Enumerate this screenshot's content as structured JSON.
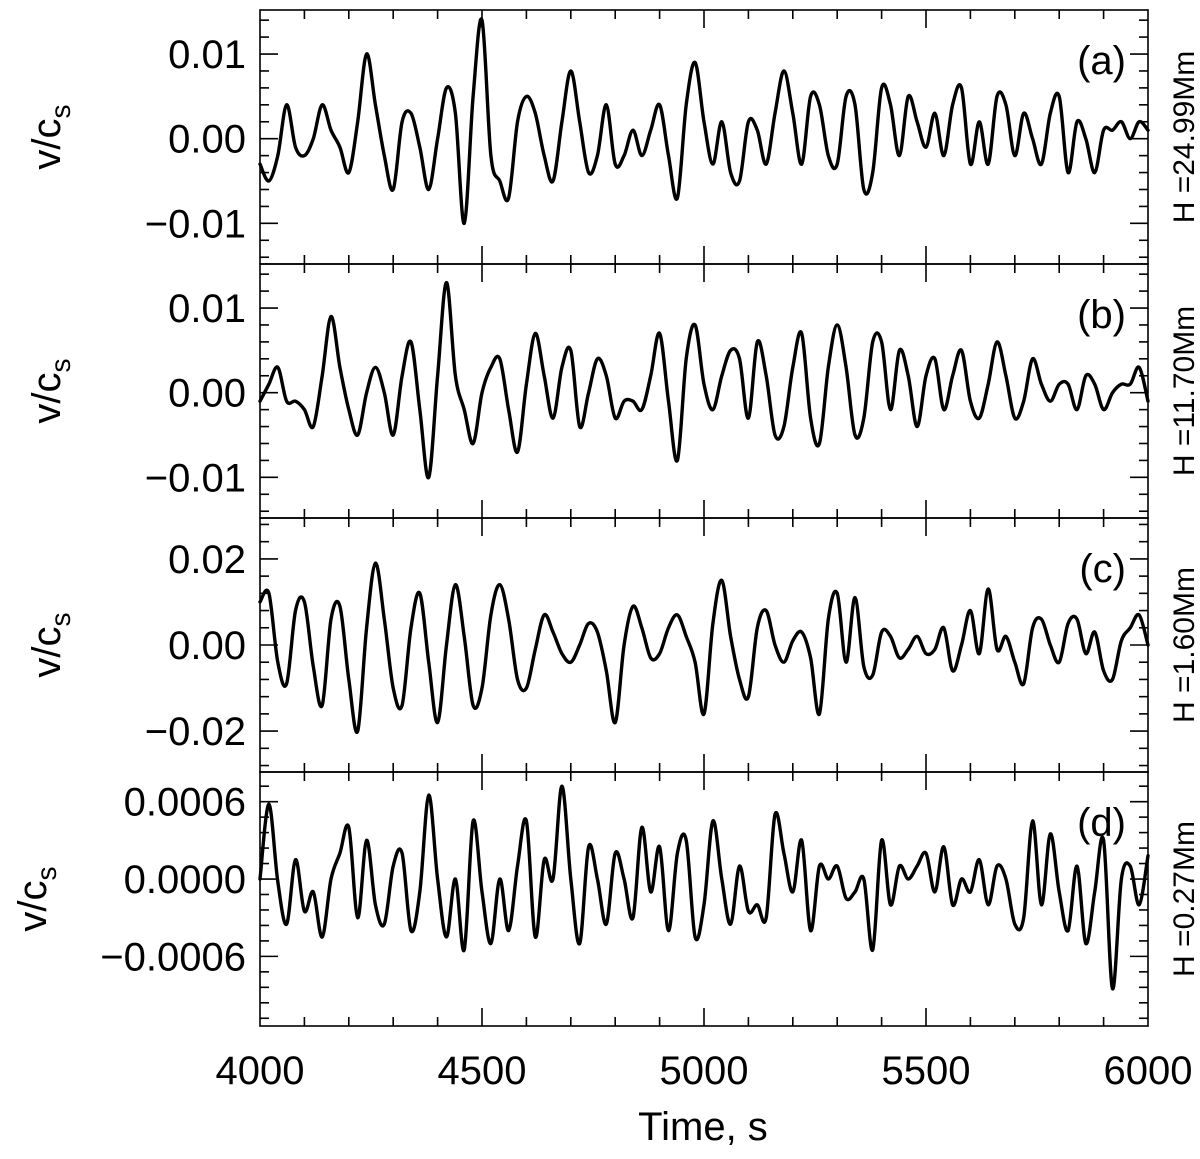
{
  "chart_data": {
    "type": "line",
    "layout": "stacked-panels",
    "xlabel": "Time, s",
    "xlim": [
      4000,
      6000
    ],
    "xticks": [
      4000,
      4500,
      5000,
      5500,
      6000
    ],
    "xtick_labels": [
      "4000",
      "4500",
      "5000",
      "5500",
      "6000"
    ],
    "grid": false,
    "colors": {
      "line": "#000000",
      "axes": "#000000",
      "background": "#ffffff"
    },
    "panels": [
      {
        "tag": "(a)",
        "ylabel": "v/c",
        "ylabel_sub": "s",
        "side_label": "H =24.99Mm",
        "ylim": [
          -0.0148,
          0.0152
        ],
        "yticks": [
          -0.01,
          0.0,
          0.01
        ],
        "ytick_labels": [
          "−0.01",
          "0.00",
          "0.01"
        ],
        "series": {
          "x": [
            4000,
            4020,
            4040,
            4060,
            4080,
            4100,
            4120,
            4140,
            4160,
            4180,
            4200,
            4220,
            4240,
            4260,
            4280,
            4300,
            4320,
            4340,
            4360,
            4380,
            4400,
            4420,
            4440,
            4460,
            4480,
            4500,
            4520,
            4540,
            4560,
            4580,
            4600,
            4620,
            4640,
            4660,
            4680,
            4700,
            4720,
            4740,
            4760,
            4780,
            4800,
            4820,
            4840,
            4860,
            4880,
            4900,
            4920,
            4940,
            4960,
            4980,
            5000,
            5020,
            5040,
            5060,
            5080,
            5100,
            5120,
            5140,
            5160,
            5180,
            5200,
            5220,
            5240,
            5260,
            5280,
            5300,
            5320,
            5340,
            5360,
            5380,
            5400,
            5420,
            5440,
            5460,
            5480,
            5500,
            5520,
            5540,
            5560,
            5580,
            5600,
            5620,
            5640,
            5660,
            5680,
            5700,
            5720,
            5740,
            5760,
            5780,
            5800,
            5820,
            5840,
            5860,
            5880,
            5900,
            5920,
            5940,
            5960,
            5980,
            6000
          ],
          "y": [
            -0.003,
            -0.005,
            -0.002,
            0.004,
            -0.001,
            -0.002,
            0.0,
            0.004,
            0.001,
            -0.001,
            -0.004,
            0.002,
            0.01,
            0.004,
            -0.002,
            -0.006,
            0.002,
            0.003,
            -0.001,
            -0.006,
            0.0,
            0.006,
            0.003,
            -0.01,
            0.005,
            0.014,
            -0.002,
            -0.005,
            -0.007,
            0.002,
            0.005,
            0.003,
            -0.002,
            -0.005,
            0.002,
            0.008,
            0.002,
            -0.004,
            -0.002,
            0.004,
            -0.003,
            -0.002,
            0.001,
            -0.002,
            0.001,
            0.004,
            -0.002,
            -0.007,
            0.004,
            0.009,
            0.002,
            -0.003,
            0.002,
            -0.004,
            -0.005,
            0.002,
            0.001,
            -0.003,
            0.003,
            0.008,
            0.003,
            -0.003,
            0.005,
            0.004,
            -0.002,
            -0.003,
            0.005,
            0.004,
            -0.006,
            -0.004,
            0.006,
            0.004,
            -0.002,
            0.005,
            0.002,
            -0.001,
            0.003,
            -0.002,
            0.004,
            0.006,
            -0.003,
            0.002,
            -0.003,
            0.005,
            0.004,
            -0.002,
            0.003,
            0.0,
            -0.003,
            0.003,
            0.005,
            -0.004,
            0.002,
            0.0,
            -0.004,
            0.001,
            0.001,
            0.002,
            0.0,
            0.002,
            0.001
          ]
        }
      },
      {
        "tag": "(b)",
        "ylabel": "v/c",
        "ylabel_sub": "s",
        "side_label": "H =11.70Mm",
        "ylim": [
          -0.0148,
          0.0152
        ],
        "yticks": [
          -0.01,
          0.0,
          0.01
        ],
        "ytick_labels": [
          "−0.01",
          "0.00",
          "0.01"
        ],
        "series": {
          "x": [
            4000,
            4020,
            4040,
            4060,
            4080,
            4100,
            4120,
            4140,
            4160,
            4180,
            4200,
            4220,
            4240,
            4260,
            4280,
            4300,
            4320,
            4340,
            4360,
            4380,
            4400,
            4420,
            4440,
            4460,
            4480,
            4500,
            4520,
            4540,
            4560,
            4580,
            4600,
            4620,
            4640,
            4660,
            4680,
            4700,
            4720,
            4740,
            4760,
            4780,
            4800,
            4820,
            4840,
            4860,
            4880,
            4900,
            4920,
            4940,
            4960,
            4980,
            5000,
            5020,
            5040,
            5060,
            5080,
            5100,
            5120,
            5140,
            5160,
            5180,
            5200,
            5220,
            5240,
            5260,
            5280,
            5300,
            5320,
            5340,
            5360,
            5380,
            5400,
            5420,
            5440,
            5460,
            5480,
            5500,
            5520,
            5540,
            5560,
            5580,
            5600,
            5620,
            5640,
            5660,
            5680,
            5700,
            5720,
            5740,
            5760,
            5780,
            5800,
            5820,
            5840,
            5860,
            5880,
            5900,
            5920,
            5940,
            5960,
            5980,
            6000
          ],
          "y": [
            -0.001,
            0.001,
            0.003,
            -0.001,
            -0.001,
            -0.002,
            -0.004,
            0.002,
            0.009,
            0.003,
            -0.002,
            -0.005,
            0.0,
            0.003,
            0.0,
            -0.005,
            0.002,
            0.006,
            -0.002,
            -0.01,
            0.002,
            0.013,
            0.002,
            -0.002,
            -0.006,
            0.0,
            0.003,
            0.004,
            -0.002,
            -0.007,
            0.001,
            0.007,
            0.002,
            -0.003,
            0.003,
            0.005,
            -0.004,
            0.0,
            0.004,
            0.002,
            -0.003,
            -0.001,
            -0.001,
            -0.002,
            0.002,
            0.007,
            -0.001,
            -0.008,
            0.004,
            0.008,
            0.001,
            -0.002,
            0.002,
            0.005,
            0.004,
            -0.003,
            0.006,
            0.002,
            -0.005,
            -0.004,
            0.003,
            0.007,
            -0.003,
            -0.006,
            0.003,
            0.008,
            0.003,
            -0.005,
            -0.003,
            0.006,
            0.006,
            -0.002,
            0.005,
            0.002,
            -0.004,
            0.002,
            0.004,
            -0.002,
            0.002,
            0.005,
            -0.001,
            -0.003,
            0.001,
            0.006,
            0.002,
            -0.003,
            -0.001,
            0.004,
            0.001,
            -0.001,
            0.001,
            0.001,
            -0.002,
            0.002,
            0.001,
            -0.002,
            0.0,
            0.001,
            0.001,
            0.003,
            -0.001
          ]
        }
      },
      {
        "tag": "(c)",
        "ylabel": "v/c",
        "ylabel_sub": "s",
        "side_label": "H =1.60Mm",
        "ylim": [
          -0.0295,
          0.0295
        ],
        "yticks": [
          -0.02,
          0.0,
          0.02
        ],
        "ytick_labels": [
          "−0.02",
          "0.00",
          "0.02"
        ],
        "series": {
          "x": [
            4000,
            4020,
            4040,
            4060,
            4080,
            4100,
            4120,
            4140,
            4160,
            4180,
            4200,
            4220,
            4240,
            4260,
            4280,
            4300,
            4320,
            4340,
            4360,
            4380,
            4400,
            4420,
            4440,
            4460,
            4480,
            4500,
            4520,
            4540,
            4560,
            4580,
            4600,
            4620,
            4640,
            4660,
            4680,
            4700,
            4720,
            4740,
            4760,
            4780,
            4800,
            4820,
            4840,
            4860,
            4880,
            4900,
            4920,
            4940,
            4960,
            4980,
            5000,
            5020,
            5040,
            5060,
            5080,
            5100,
            5120,
            5140,
            5160,
            5180,
            5200,
            5220,
            5240,
            5260,
            5280,
            5300,
            5320,
            5340,
            5360,
            5380,
            5400,
            5420,
            5440,
            5460,
            5480,
            5500,
            5520,
            5540,
            5560,
            5580,
            5600,
            5620,
            5640,
            5660,
            5680,
            5700,
            5720,
            5740,
            5760,
            5780,
            5800,
            5820,
            5840,
            5860,
            5880,
            5900,
            5920,
            5940,
            5960,
            5980,
            6000
          ],
          "y": [
            0.01,
            0.012,
            -0.004,
            -0.009,
            0.008,
            0.01,
            -0.005,
            -0.014,
            0.006,
            0.009,
            -0.008,
            -0.02,
            0.004,
            0.019,
            0.006,
            -0.01,
            -0.014,
            0.004,
            0.012,
            -0.004,
            -0.018,
            0.0,
            0.014,
            0.002,
            -0.014,
            -0.01,
            0.007,
            0.014,
            0.006,
            -0.008,
            -0.01,
            -0.001,
            0.007,
            0.003,
            -0.002,
            -0.004,
            0.0,
            0.005,
            0.003,
            -0.006,
            -0.018,
            0.0,
            0.009,
            0.004,
            -0.003,
            -0.002,
            0.004,
            0.007,
            0.002,
            -0.004,
            -0.016,
            0.005,
            0.015,
            0.002,
            -0.008,
            -0.012,
            0.004,
            0.008,
            0.0,
            -0.004,
            0.001,
            0.003,
            -0.003,
            -0.016,
            0.006,
            0.012,
            -0.004,
            0.011,
            -0.005,
            -0.007,
            0.003,
            0.002,
            -0.003,
            -0.001,
            0.002,
            -0.002,
            -0.001,
            0.004,
            -0.006,
            0.0,
            0.008,
            -0.002,
            0.013,
            -0.001,
            0.002,
            -0.004,
            -0.009,
            0.004,
            0.006,
            0.0,
            -0.004,
            0.005,
            0.006,
            -0.002,
            0.003,
            -0.006,
            -0.008,
            0.001,
            0.004,
            0.007,
            0.0
          ]
        }
      },
      {
        "tag": "(d)",
        "ylabel": "v/c",
        "ylabel_sub": "s",
        "side_label": "H =0.27Mm",
        "ylim": [
          -0.00114,
          0.00083
        ],
        "yticks": [
          -0.0006,
          0.0,
          0.0006
        ],
        "ytick_labels": [
          "−0.0006",
          "0.0000",
          "0.0006"
        ],
        "series": {
          "x": [
            4000,
            4020,
            4040,
            4060,
            4080,
            4100,
            4120,
            4140,
            4160,
            4180,
            4200,
            4220,
            4240,
            4260,
            4280,
            4300,
            4320,
            4340,
            4360,
            4380,
            4400,
            4420,
            4440,
            4460,
            4480,
            4500,
            4520,
            4540,
            4560,
            4580,
            4600,
            4620,
            4640,
            4660,
            4680,
            4700,
            4720,
            4740,
            4760,
            4780,
            4800,
            4820,
            4840,
            4860,
            4880,
            4900,
            4920,
            4940,
            4960,
            4980,
            5000,
            5020,
            5040,
            5060,
            5080,
            5100,
            5120,
            5140,
            5160,
            5180,
            5200,
            5220,
            5240,
            5260,
            5280,
            5300,
            5320,
            5340,
            5360,
            5380,
            5400,
            5420,
            5440,
            5460,
            5480,
            5500,
            5520,
            5540,
            5560,
            5580,
            5600,
            5620,
            5640,
            5660,
            5680,
            5700,
            5720,
            5740,
            5760,
            5780,
            5800,
            5820,
            5840,
            5860,
            5880,
            5900,
            5920,
            5940,
            5960,
            5980,
            6000
          ],
          "y": [
            0.0,
            0.00058,
            -2e-05,
            -0.00035,
            0.00015,
            -0.00025,
            -0.0001,
            -0.00045,
            0.0,
            0.0002,
            0.0004,
            -0.0003,
            0.0003,
            -0.0002,
            -0.00035,
            0.0001,
            0.0002,
            -0.0004,
            -0.0001,
            0.00065,
            0.0,
            -0.00045,
            0.0,
            -0.00055,
            0.00045,
            -0.0001,
            -0.0005,
            0.0,
            -0.0004,
            0.0001,
            0.00045,
            -0.00045,
            0.00015,
            0.0,
            0.00072,
            0.0,
            -0.0005,
            0.00025,
            0.0,
            -0.00035,
            0.0002,
            0.0,
            -0.0003,
            0.0004,
            -0.0001,
            0.00025,
            -0.0004,
            0.0002,
            0.0003,
            -0.00045,
            -0.0002,
            0.00045,
            0.0,
            -0.00035,
            0.0001,
            -0.00025,
            -0.0002,
            -0.0003,
            0.0005,
            0.0002,
            -0.0001,
            0.0003,
            -0.0004,
            0.0001,
            0.0,
            0.0001,
            -0.00015,
            -0.0001,
            0.0,
            -0.00055,
            0.0003,
            -0.0002,
            0.0001,
            0.0,
            0.0001,
            0.0002,
            -0.0001,
            0.00025,
            -0.0002,
            0.0,
            -0.0001,
            0.00015,
            -0.0002,
            0.0001,
            0.0,
            -0.00035,
            -0.0003,
            0.00045,
            -0.0002,
            0.00035,
            -0.0001,
            -0.0004,
            0.0001,
            -0.0005,
            -0.0001,
            0.0003,
            -0.00085,
            0.0,
            0.0001,
            -0.0002,
            0.00018
          ]
        }
      }
    ]
  }
}
